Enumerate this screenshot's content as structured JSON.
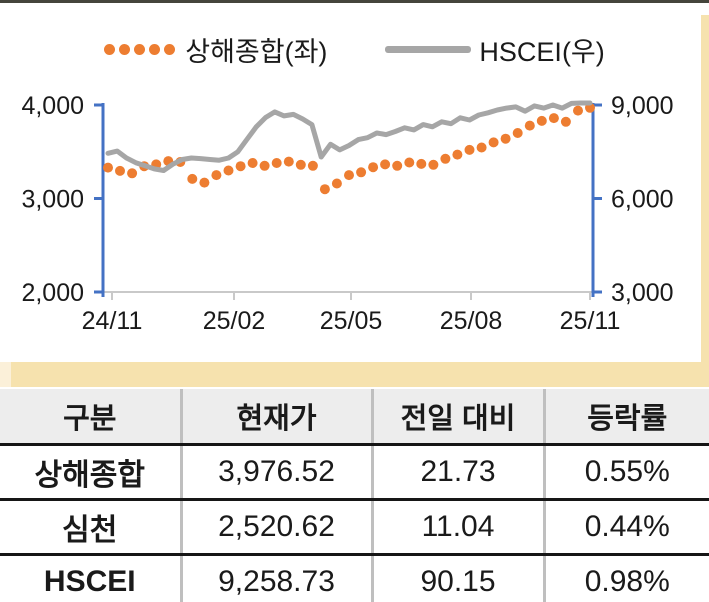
{
  "chart_data": {
    "type": "line",
    "title": "",
    "x_axis": {
      "tick_labels": [
        "24/11",
        "25/02",
        "25/05",
        "25/08",
        "25/11"
      ]
    },
    "left_axis": {
      "title": "상해종합(좌)",
      "tick_labels": [
        "4,000",
        "3,000",
        "2,000"
      ],
      "range": [
        2000,
        4000
      ]
    },
    "right_axis": {
      "title": "HSCEI(우)",
      "tick_labels": [
        "9,000",
        "6,000",
        "3,000"
      ],
      "range": [
        3000,
        9000
      ]
    },
    "grid": false,
    "legend_position": "top-center",
    "series": [
      {
        "name": "상해종합(좌)",
        "axis": "left",
        "style": "dots",
        "color": "#ED7D31",
        "values": [
          3330,
          3295,
          3270,
          3345,
          3365,
          3400,
          3390,
          3210,
          3170,
          3250,
          3300,
          3345,
          3380,
          3350,
          3380,
          3395,
          3360,
          3350,
          3100,
          3160,
          3250,
          3280,
          3335,
          3365,
          3350,
          3385,
          3370,
          3360,
          3425,
          3470,
          3520,
          3545,
          3600,
          3640,
          3700,
          3780,
          3830,
          3860,
          3820,
          3940,
          3970
        ]
      },
      {
        "name": "HSCEI(우)",
        "axis": "right",
        "style": "line",
        "color": "#A6A6A6",
        "values": [
          7450,
          7520,
          7300,
          7150,
          7050,
          6950,
          6900,
          7100,
          7250,
          7300,
          7280,
          7250,
          7230,
          7300,
          7500,
          7900,
          8300,
          8600,
          8780,
          8650,
          8700,
          8550,
          8370,
          7330,
          7740,
          7560,
          7700,
          7890,
          7950,
          8100,
          8050,
          8150,
          8270,
          8200,
          8370,
          8300,
          8460,
          8400,
          8590,
          8520,
          8680,
          8750,
          8840,
          8900,
          8940,
          8800,
          8970,
          8900,
          9000,
          8900,
          9050,
          9150,
          9258
        ]
      }
    ]
  },
  "table": {
    "headers": [
      "구분",
      "현재가",
      "전일 대비",
      "등락률"
    ],
    "rows": [
      [
        "상해종합",
        "3,976.52",
        "21.73",
        "0.55%"
      ],
      [
        "심천",
        "2,520.62",
        "11.04",
        "0.44%"
      ],
      [
        "HSCEI",
        "9,258.73",
        "90.15",
        "0.98%"
      ]
    ]
  },
  "colors": {
    "accent_orange": "#ED7D31",
    "series_gray": "#A6A6A6",
    "axis_blue": "#4472C4",
    "x_axis_gray": "#c9c9c9",
    "divider_band": "#f6e2ae",
    "divider_band_light": "#fbf0d9",
    "table_header_bg": "#ededed",
    "text": "#1a1a1a"
  }
}
